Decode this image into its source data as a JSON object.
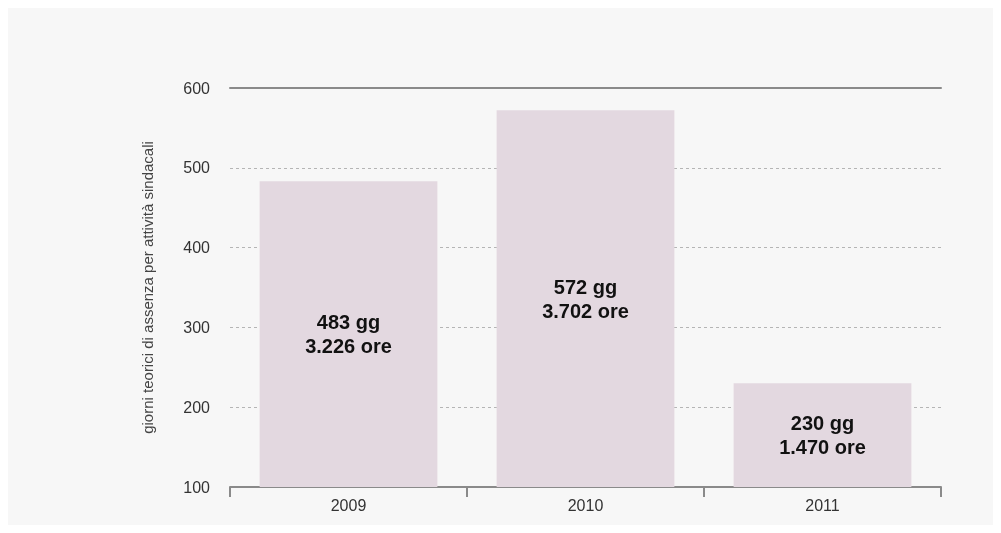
{
  "chart_data": {
    "type": "bar",
    "ylabel": "giorni teorici di assenza per attività sindacali",
    "categories": [
      "2009",
      "2010",
      "2011"
    ],
    "values": [
      483,
      572,
      230
    ],
    "value_labels": [
      "483 gg\n3.226 ore",
      "572 gg\n3.702 ore",
      "230 gg\n1.470 ore"
    ],
    "color": "#e3d8e0",
    "ylim": [
      100,
      600
    ],
    "yticks": [
      100,
      200,
      300,
      400,
      500,
      600
    ],
    "grid": "y"
  }
}
